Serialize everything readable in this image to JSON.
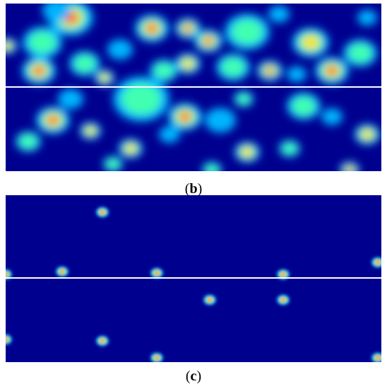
{
  "figure": {
    "captions": [
      {
        "open": "(",
        "label": "b",
        "close": ")"
      },
      {
        "open": "(",
        "label": "c",
        "close": ")"
      }
    ]
  }
}
